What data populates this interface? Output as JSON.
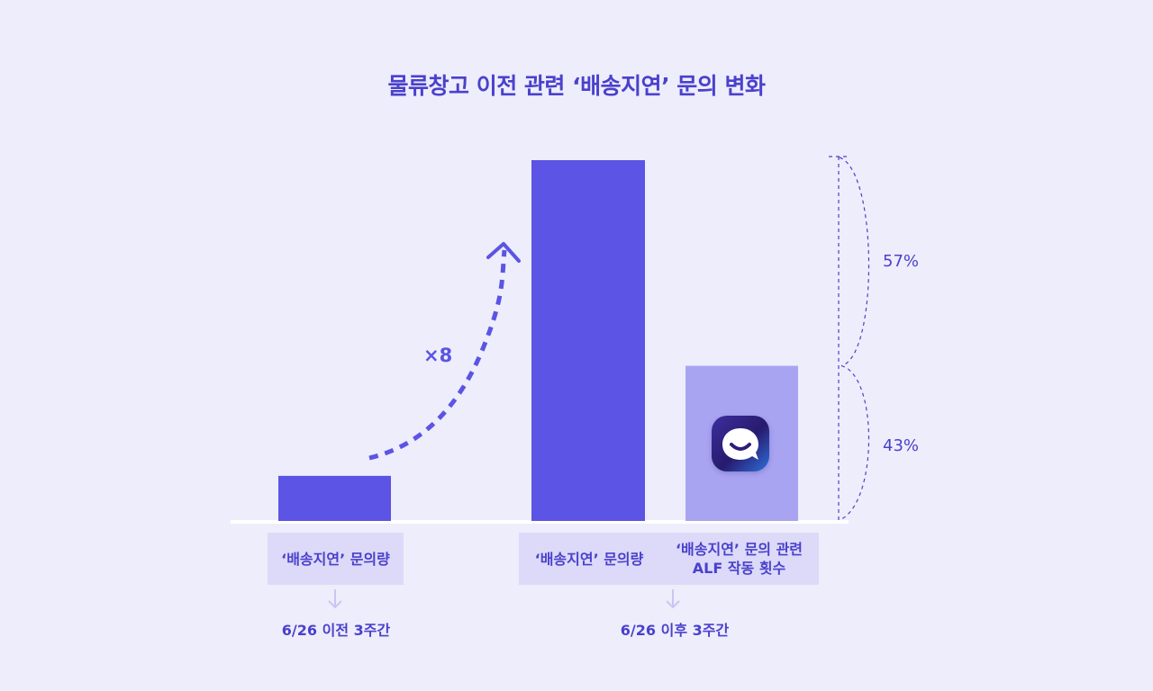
{
  "title": "물류창고 이전 관련 ‘배송지연’ 문의 변화",
  "colors": {
    "bar_primary": "#5b54e4",
    "bar_secondary": "#a9a4f2",
    "background": "#eeedfb",
    "label_box": "#dcdaf8",
    "text": "#4a41cc"
  },
  "chart_data": {
    "type": "bar",
    "title": "물류창고 이전 관련 ‘배송지연’ 문의 변화",
    "xlabel": "",
    "ylabel": "",
    "ylim": [
      0,
      8
    ],
    "grid": false,
    "categories": [
      "‘배송지연’ 문의량",
      "‘배송지연’ 문의량",
      "‘배송지연’ 문의 관련\nALF 작동 횟수"
    ],
    "values": [
      1,
      8,
      3.44
    ],
    "groups": [
      {
        "label": "6/26 이전 3주간",
        "bars": [
          0
        ]
      },
      {
        "label": "6/26 이후 3주간",
        "bars": [
          1,
          2
        ]
      }
    ],
    "annotations": {
      "multiplier": "×8",
      "upper_share": "57%",
      "lower_share": "43%"
    },
    "icons": [
      "arrow-down-icon",
      "curved-dashed-arrow-icon",
      "alf-chat-logo-icon",
      "brace-icon"
    ]
  }
}
